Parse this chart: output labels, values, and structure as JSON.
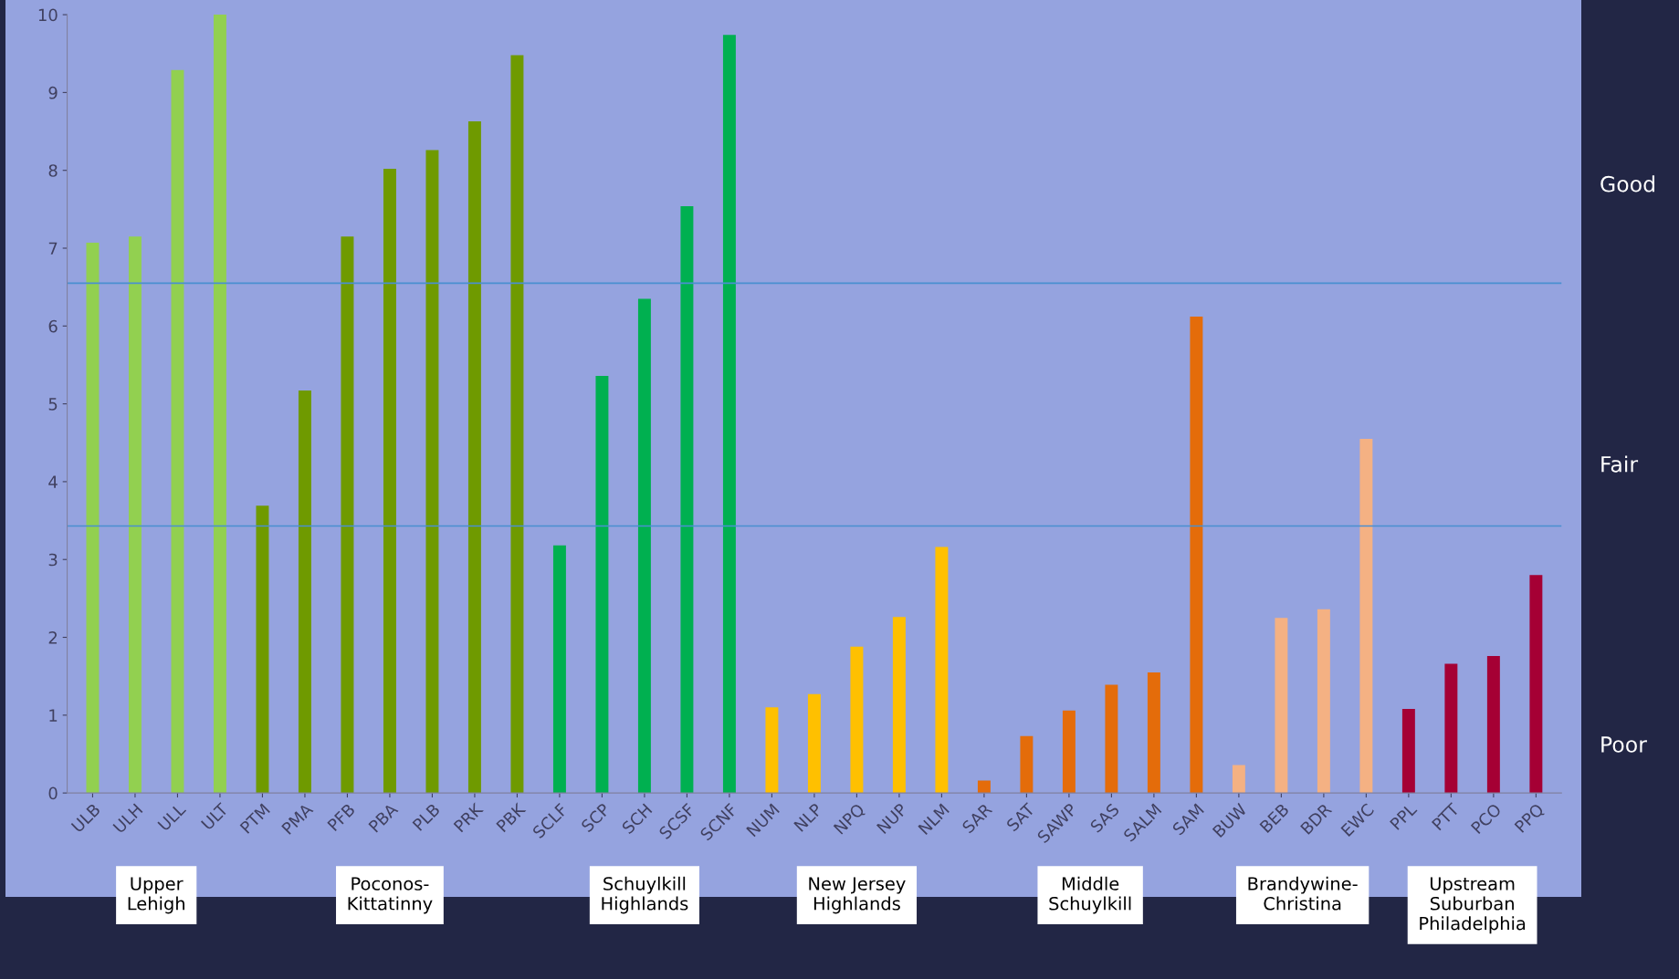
{
  "chart_data": {
    "type": "bar",
    "categories": [
      "ULB",
      "ULH",
      "ULL",
      "ULT",
      "PTM",
      "PMA",
      "PFB",
      "PBA",
      "PLB",
      "PRK",
      "PBK",
      "SCLF",
      "SCP",
      "SCH",
      "SCSF",
      "SCNF",
      "NUM",
      "NLP",
      "NPQ",
      "NUP",
      "NLM",
      "SAR",
      "SAT",
      "SAWP",
      "SAS",
      "SALM",
      "SAM",
      "BUW",
      "BEB",
      "BDR",
      "EWC",
      "PPL",
      "PTT",
      "PCO",
      "PPQ"
    ],
    "values": [
      7.07,
      7.15,
      9.29,
      10.0,
      3.69,
      5.17,
      7.15,
      8.02,
      8.26,
      8.63,
      9.48,
      3.18,
      5.36,
      6.35,
      7.54,
      9.74,
      1.1,
      1.27,
      1.88,
      2.26,
      3.16,
      0.16,
      0.73,
      1.06,
      1.39,
      1.55,
      6.12,
      0.36,
      2.25,
      2.36,
      4.55,
      1.08,
      1.66,
      1.76,
      2.8
    ],
    "colors": [
      "#92d050",
      "#92d050",
      "#92d050",
      "#92d050",
      "#6f9a00",
      "#6f9a00",
      "#6f9a00",
      "#6f9a00",
      "#6f9a00",
      "#6f9a00",
      "#6f9a00",
      "#00b050",
      "#00b050",
      "#00b050",
      "#00b050",
      "#00b050",
      "#ffc000",
      "#ffc000",
      "#ffc000",
      "#ffc000",
      "#ffc000",
      "#e46c0a",
      "#e46c0a",
      "#e46c0a",
      "#e46c0a",
      "#e46c0a",
      "#e46c0a",
      "#f4b183",
      "#f4b183",
      "#f4b183",
      "#f4b183",
      "#a50034",
      "#a50034",
      "#a50034",
      "#a50034"
    ],
    "ylim": [
      0,
      10
    ],
    "yticks": [
      0,
      1,
      2,
      3,
      4,
      5,
      6,
      7,
      8,
      9,
      10
    ],
    "grid": false,
    "legend": false,
    "ref_lines": [
      {
        "axis": "y",
        "value": 6.55,
        "color": "#4a8fd0"
      },
      {
        "axis": "y",
        "value": 3.43,
        "color": "#4a8fd0"
      }
    ],
    "annotations": [
      "Good",
      "Fair",
      "Poor",
      "Upper\nLehigh",
      "Poconos-\nKittatinny",
      "Schuylkill\nHighlands",
      "New Jersey\nHighlands",
      "Middle\nSchuylkill",
      "Brandywine-\nChristina",
      "Upstream\nSuburban\nPhiladelphia"
    ]
  }
}
